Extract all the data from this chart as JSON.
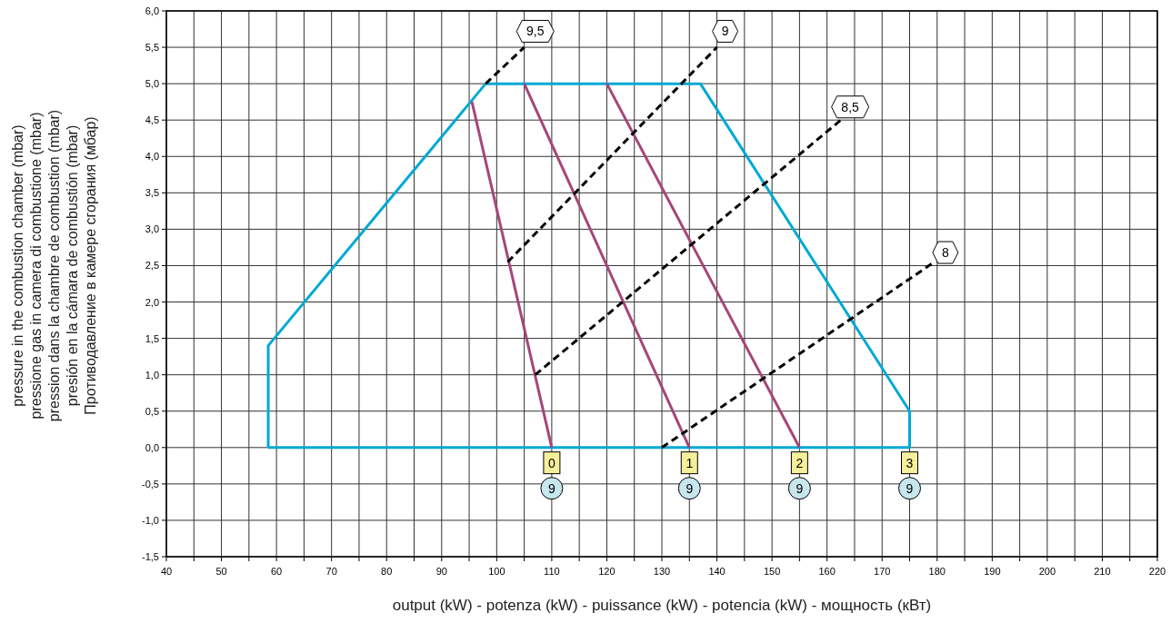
{
  "chart_data": {
    "type": "line",
    "xlabel": "output (kW) - potenza (kW) - puissance (kW) - potencia (kW) - мощность (кВт)",
    "ylabel": "pressure in the combustion chamber (mbar)\npressione gas in camera di combustione (mbar)\npression dans la chambre de combustion (mbar)\npresión en la cámara de combustión (mbar)\nПротиводавление в камере сгорания (мбар)",
    "xlim": [
      40,
      220
    ],
    "xticks": [
      40,
      {
        "value": 45,
        "label": null
      },
      50,
      {
        "value": 55,
        "label": null
      },
      60,
      {
        "value": 65,
        "label": null
      },
      70,
      {
        "value": 75,
        "label": null
      },
      80,
      {
        "value": 85,
        "label": null
      },
      90,
      {
        "value": 95,
        "label": null
      },
      100,
      {
        "value": 105,
        "label": null
      },
      110,
      {
        "value": 115,
        "label": null
      },
      120,
      {
        "value": 125,
        "label": null
      },
      130,
      {
        "value": 135,
        "label": null
      },
      140,
      {
        "value": 145,
        "label": null
      },
      150,
      {
        "value": 155,
        "label": null
      },
      160,
      {
        "value": 165,
        "label": null
      },
      170,
      {
        "value": 175,
        "label": null
      },
      180,
      {
        "value": 185,
        "label": null
      },
      190,
      {
        "value": 195,
        "label": null
      },
      200,
      {
        "value": 205,
        "label": null
      },
      210,
      {
        "value": 215,
        "label": null
      },
      220
    ],
    "ylim": [
      -1.5,
      6
    ],
    "yticks": [
      {
        "value": -1.5,
        "label": "-1,5"
      },
      {
        "value": -1,
        "label": "-1,0"
      },
      {
        "value": -0.5,
        "label": "-0,5"
      },
      {
        "value": 0,
        "label": "0,0"
      },
      {
        "value": 0.5,
        "label": "0,5"
      },
      {
        "value": 1,
        "label": "1,0"
      },
      {
        "value": 1.5,
        "label": "1,5"
      },
      {
        "value": 2,
        "label": "2,0"
      },
      {
        "value": 2.5,
        "label": "2,5"
      },
      {
        "value": 3,
        "label": "3,0"
      },
      {
        "value": 3.5,
        "label": "3,5"
      },
      {
        "value": 4,
        "label": "4,0"
      },
      {
        "value": 4.5,
        "label": "4,5"
      },
      {
        "value": 5,
        "label": "5,0"
      },
      {
        "value": 5.5,
        "label": "5,5"
      },
      {
        "value": 6,
        "label": "6,0"
      }
    ],
    "grid": true,
    "marker": "none",
    "series": [
      {
        "color": "#00a9d4",
        "x": [
          58.5,
          58.5,
          98,
          137,
          175,
          175
        ],
        "values": [
          0,
          1.4,
          5,
          5,
          0.5,
          0
        ]
      },
      {
        "color": "#00a9d4",
        "x": [
          58.5,
          175
        ],
        "values": [
          0,
          0
        ]
      },
      {
        "color": "#a5467a",
        "x": [
          95.5,
          110
        ],
        "values": [
          4.75,
          0
        ]
      },
      {
        "color": "#a5467a",
        "x": [
          105,
          135
        ],
        "values": [
          5,
          0
        ]
      },
      {
        "color": "#a5467a",
        "x": [
          120,
          155
        ],
        "values": [
          5,
          0
        ]
      },
      {
        "color": "#000000",
        "line_style": "dashed",
        "x": [
          98,
          105
        ],
        "values": [
          5,
          5.5
        ]
      },
      {
        "color": "#000000",
        "line_style": "dashed",
        "x": [
          102,
          140
        ],
        "values": [
          2.55,
          5.5
        ]
      },
      {
        "color": "#000000",
        "line_style": "dashed",
        "x": [
          107,
          162.5
        ],
        "values": [
          1,
          4.5
        ]
      },
      {
        "color": "#000000",
        "line_style": "dashed",
        "x": [
          130,
          179.5
        ],
        "values": [
          0,
          2.55
        ]
      }
    ],
    "annotations": [
      {
        "text": "9,5",
        "x": 107,
        "y": 5.72
      },
      {
        "text": "9",
        "x": 141.5,
        "y": 5.72
      },
      {
        "text": "8,5",
        "x": 164.2,
        "y": 4.68
      },
      {
        "text": "8",
        "x": 181.5,
        "y": 2.68
      },
      {
        "text": "0",
        "x": 110,
        "y": -0.21
      },
      {
        "text": "1",
        "x": 135,
        "y": -0.21
      },
      {
        "text": "2",
        "x": 155,
        "y": -0.21
      },
      {
        "text": "3",
        "x": 175,
        "y": -0.21
      },
      {
        "text": "9",
        "x": 110,
        "y": -0.56
      },
      {
        "text": "9",
        "x": 135,
        "y": -0.56
      },
      {
        "text": "9",
        "x": 155,
        "y": -0.56
      },
      {
        "text": "9",
        "x": 175,
        "y": -0.56
      }
    ]
  }
}
